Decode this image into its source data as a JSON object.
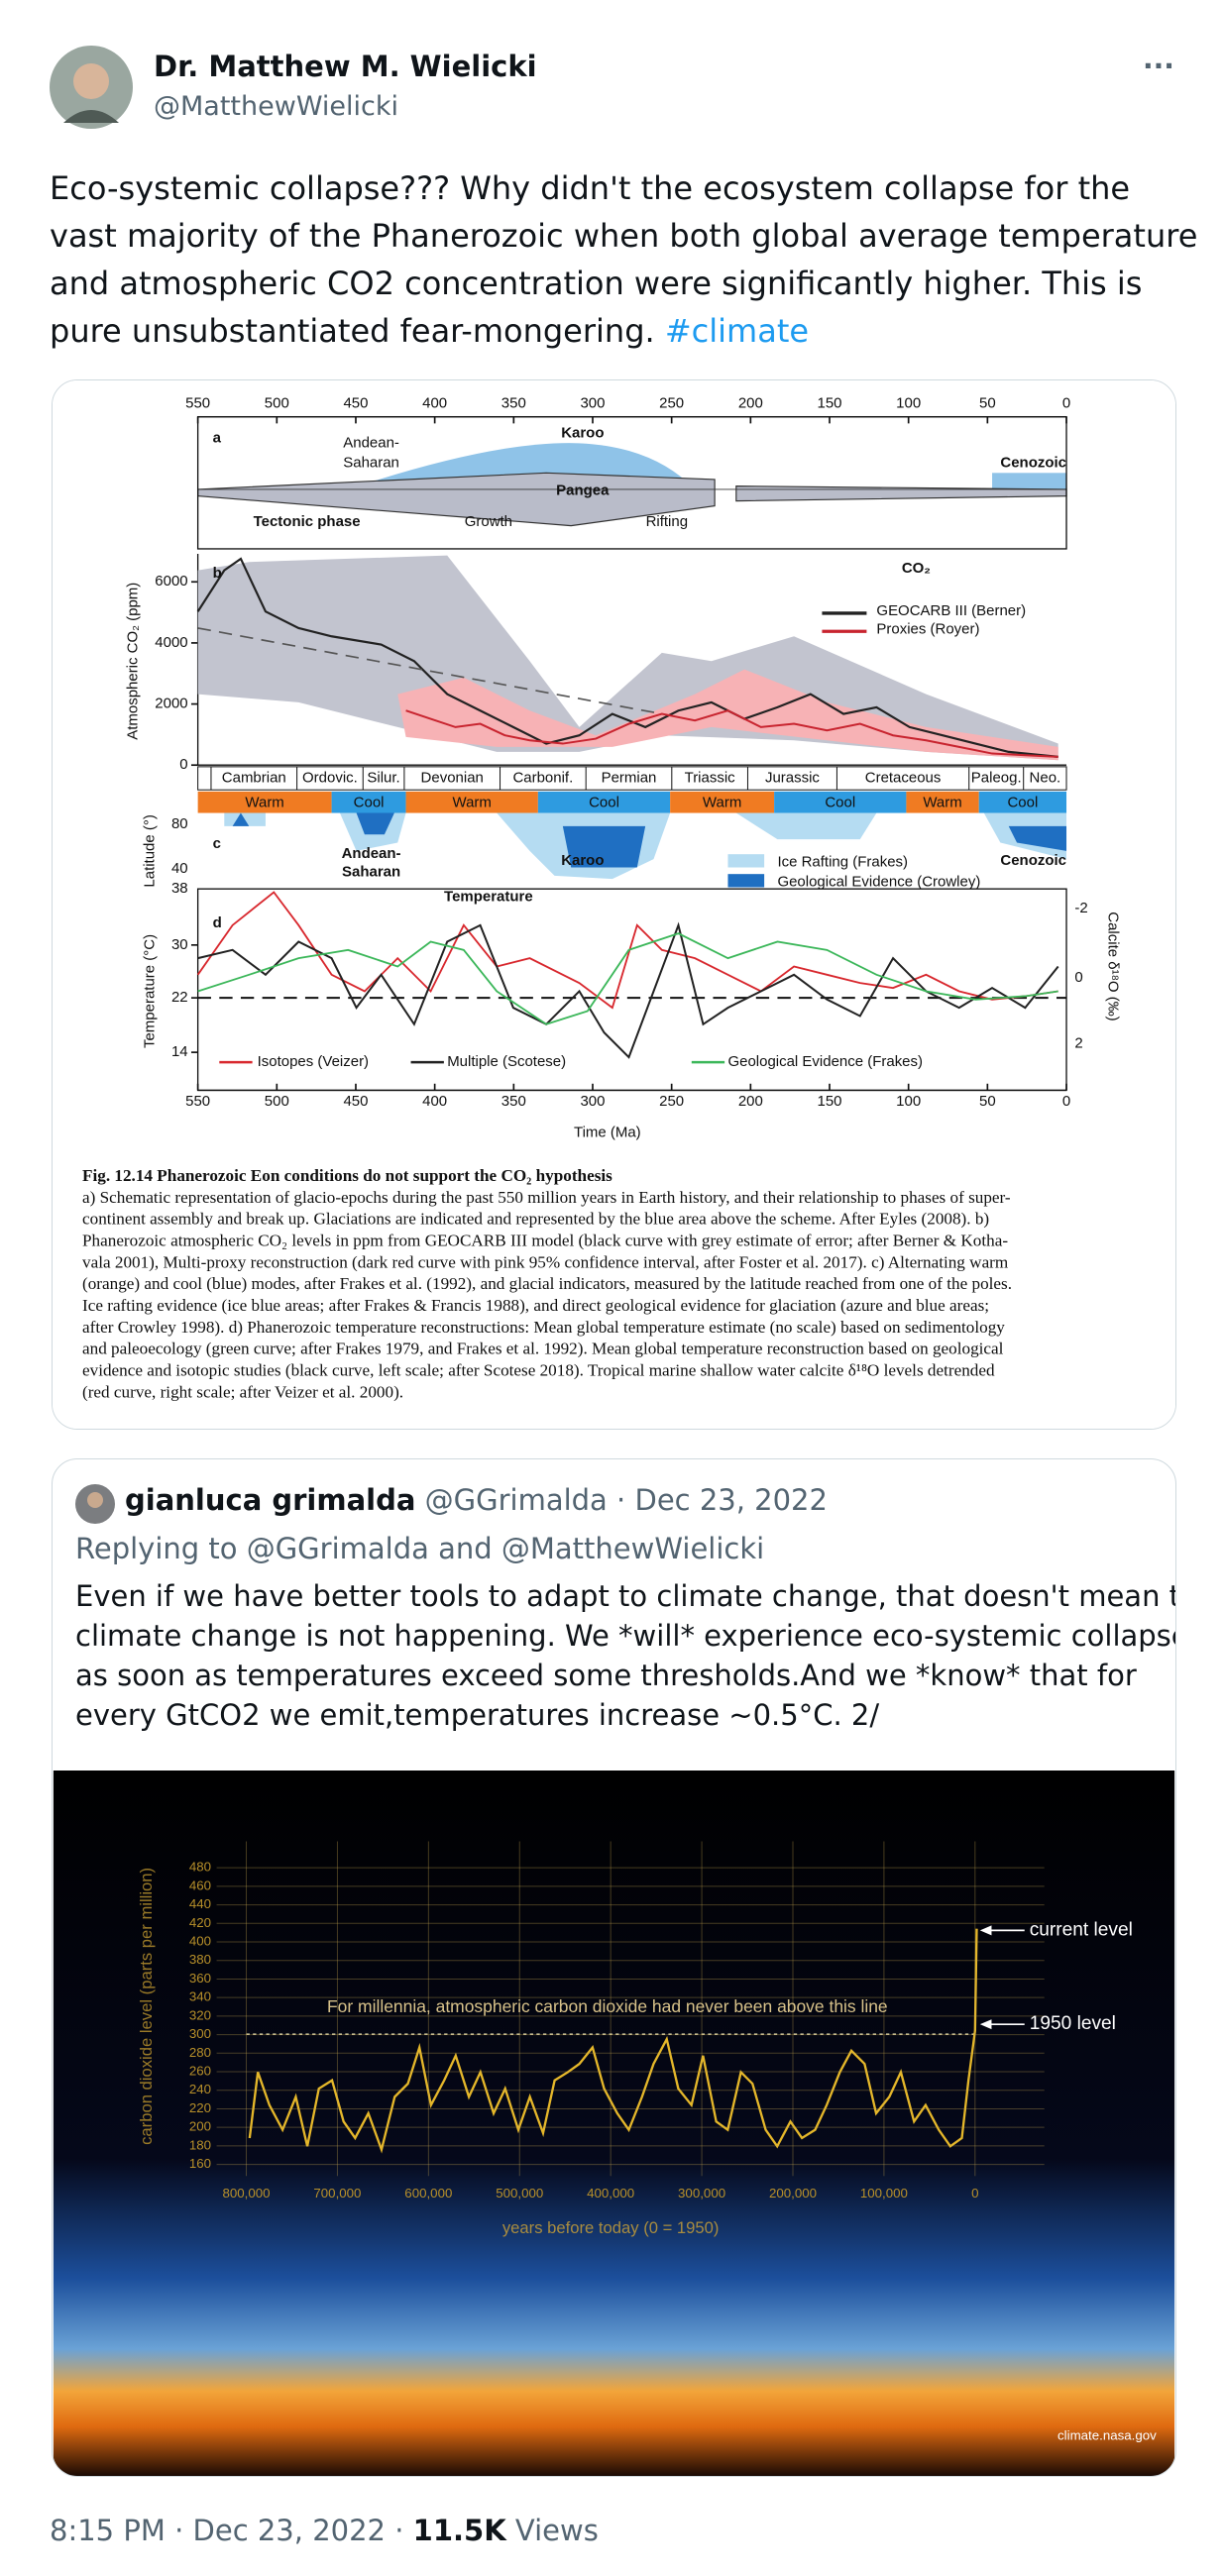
{
  "tweet": {
    "author_name": "Dr. Matthew M. Wielicki",
    "author_handle": "@MatthewWielicki",
    "more": "···",
    "text_lines": [
      "Eco-systemic collapse???  Why didn't the ecosystem collapse for the",
      "vast majority of the Phanerozoic when both global average temperature",
      "and atmospheric CO2 concentration were significantly higher. This is",
      "pure unsubstantiated fear-mongering."
    ],
    "hashtag": "#climate",
    "time": "8:15 PM",
    "separator": "·",
    "date": "Dec 23, 2022",
    "views_count": "11.5K",
    "views_label": "Views"
  },
  "figure1": {
    "top_ticks": [
      550,
      500,
      450,
      400,
      350,
      300,
      250,
      200,
      150,
      100,
      50,
      0
    ],
    "bottom_ticks": [
      550,
      500,
      450,
      400,
      350,
      300,
      250,
      200,
      150,
      100,
      50,
      0
    ],
    "labels": [
      "a",
      "Andean-",
      "Saharan",
      "Karoo",
      "Cenozoic",
      "Pangea",
      "Tectonic phase",
      "Growth",
      "Rifting",
      "b",
      "CO₂",
      "GEOCARB III (Berner)",
      "Proxies (Royer)",
      "Atmospheric CO₂ (ppm)",
      "c",
      "Andean-",
      "Saharan",
      "Karoo",
      "Cenozoic",
      "Ice Rafting (Frakes)",
      "Geological Evidence (Crowley)",
      "Latitude (°)",
      "Temperature",
      "d",
      "Temperature (°C)",
      "Calcite δ¹⁸O (‰)",
      "Isotopes (Veizer)",
      "Multiple (Scotese)",
      "Geological Evidence (Frakes)",
      "Time (Ma)"
    ],
    "co2_ticks": [
      6000,
      4000,
      2000,
      0
    ],
    "periods": [
      "Cambrian",
      "Ordovic.",
      "Silur.",
      "Devonian",
      "Carbonif.",
      "Permian",
      "Triassic",
      "Jurassic",
      "Cretaceous",
      "Paleog.",
      "Neo."
    ],
    "modes": [
      "Warm",
      "Cool",
      "Warm",
      "Cool",
      "Warm",
      "Cool",
      "Warm",
      "Cool"
    ],
    "lat_ticks": [
      80,
      40,
      38
    ],
    "temp_ticks": [
      30,
      22,
      14
    ],
    "d18o_ticks": [
      -2,
      0,
      2
    ],
    "caption": [
      "Fig. 12.14 Phanerozoic Eon conditions do not support the CO₂ hypothesis",
      "a) Schematic representation of glacio-epochs during the past 550 million years in Earth history, and their relationship to phases of super-",
      "continent assembly and break up. Glaciations are indicated and represented by the blue area above the scheme. After Eyles (2008). b)",
      "Phanerozoic atmospheric CO₂ levels in ppm from GEOCARB III model (black curve with grey estimate of error; after Berner & Kotha-",
      "vala 2001), Multi-proxy reconstruction (dark red curve with pink 95% confidence interval, after Foster et al. 2017). c) Alternating warm",
      "(orange) and cool (blue) modes, after Frakes et al. (1992), and glacial indicators, measured by the latitude reached from one of the poles.",
      "Ice rafting evidence (ice blue areas; after Frakes & Francis 1988), and direct geological evidence for glaciation (azure and blue areas;",
      "after Crowley 1998). d) Phanerozoic temperature reconstructions: Mean global temperature estimate (no scale) based on sedimentology",
      "and paleoecology (green curve; after Frakes 1979, and Frakes et al. 1992). Mean global temperature reconstruction based on geological",
      "evidence and isotopic studies (black curve, left scale; after Scotese 2018). Tropical marine shallow water calcite δ¹⁸O levels detrended",
      "(red curve, right scale; after Veizer et al. 2000)."
    ]
  },
  "quoted": {
    "author_name": "gianluca grimalda",
    "author_handle": "@GGrimalda",
    "separator": "·",
    "date": "Dec 23, 2022",
    "replying_to": "Replying to @GGrimalda and @MatthewWielicki",
    "text_lines": [
      "Even if we have better tools to adapt to climate change, that doesn't mean that",
      "climate change is not happening. We *will* experience eco-systemic collapse",
      "as soon as temperatures exceed some thresholds.And we *know* that for",
      "every GtCO2 we emit,temperatures increase ~0.5°C. 2/"
    ]
  },
  "figure2": {
    "y_label": "carbon dioxide level (parts per million)",
    "y_ticks": [
      480,
      460,
      440,
      420,
      400,
      380,
      360,
      340,
      320,
      300,
      280,
      260,
      240,
      220,
      200,
      180,
      160
    ],
    "x_ticks": [
      "800,000",
      "700,000",
      "600,000",
      "500,000",
      "400,000",
      "300,000",
      "200,000",
      "100,000",
      "0"
    ],
    "x_label": "years before today (0 = 1950)",
    "annotation": "For millennia, atmospheric carbon dioxide had never been above this line",
    "current_level": "current level",
    "level_1950": "1950 level",
    "credit": "climate.nasa.gov"
  }
}
